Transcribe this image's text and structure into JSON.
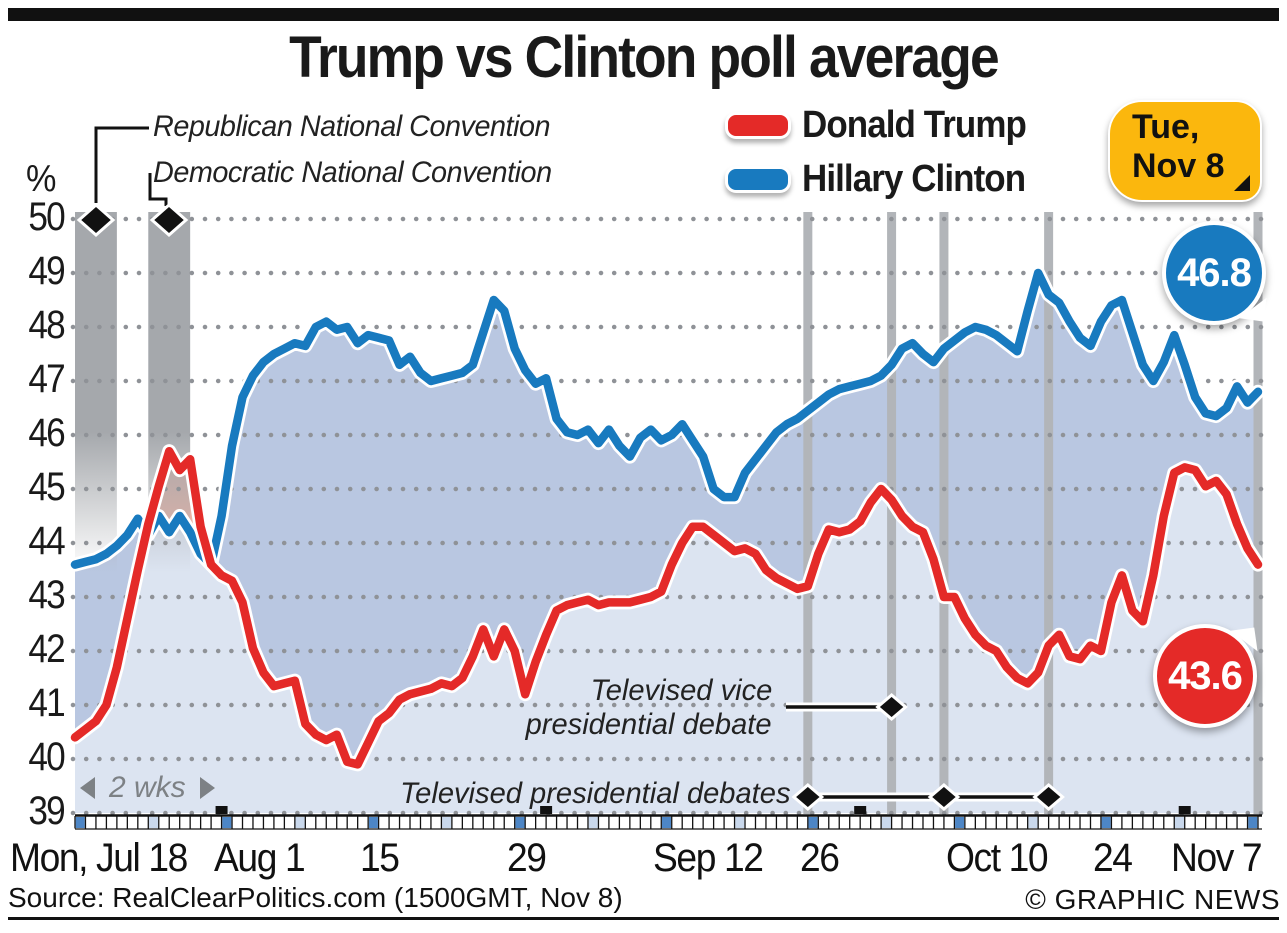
{
  "title": "Trump vs Clinton poll average",
  "annotations": {
    "rnc": "Republican National Convention",
    "dnc": "Democratic National Convention",
    "vp_line1": "Televised vice",
    "vp_line2": "presidential debate",
    "presidential": "Televised presidential debates",
    "range_label": "2 wks"
  },
  "legend": [
    {
      "label": "Donald Trump",
      "color": "#e42a28"
    },
    {
      "label": "Hillary Clinton",
      "color": "#187abf"
    }
  ],
  "election_badge": {
    "line1": "Tue,",
    "line2": "Nov 8",
    "color": "#fbb70d"
  },
  "badges": {
    "clinton_final": "46.8",
    "trump_final": "43.6"
  },
  "axis": {
    "unit": "%",
    "y_ticks": [
      50,
      49,
      48,
      47,
      46,
      45,
      44,
      43,
      42,
      41,
      40,
      39
    ],
    "x_ticks": [
      {
        "label": "Mon, Jul 18",
        "day": 0,
        "align": "start"
      },
      {
        "label": "Aug 1",
        "day": 14,
        "align": "tick"
      },
      {
        "label": "15",
        "day": 28,
        "align": "tick"
      },
      {
        "label": "29",
        "day": 42,
        "align": "tick"
      },
      {
        "label": "Sep 12",
        "day": 56,
        "align": "tick"
      },
      {
        "label": "26",
        "day": 70,
        "align": "tick"
      },
      {
        "label": "Oct 10",
        "day": 84,
        "align": "tick"
      },
      {
        "label": "24",
        "day": 98,
        "align": "tick"
      },
      {
        "label": "Nov 7",
        "day": 112,
        "align": "end"
      }
    ]
  },
  "footer": {
    "source": "Source: RealClearPolitics.com (1500GMT, Nov 8)",
    "copyright": "© GRAPHIC NEWS"
  },
  "chart_data": {
    "type": "line",
    "title": "Trump vs Clinton poll average",
    "ylabel": "%",
    "ylim": [
      39,
      50
    ],
    "x_unit": "days since Jul 18 2016",
    "x_start_date": "Jul 18",
    "x_end_date": "Nov 8",
    "total_days": 113,
    "grid": "dotted horizontal at each integer percent",
    "legend_position": "top",
    "events": {
      "conventions": [
        {
          "name": "Republican National Convention",
          "start_day": 0,
          "end_day": 4
        },
        {
          "name": "Democratic National Convention",
          "start_day": 7,
          "end_day": 11
        }
      ],
      "vp_debate_day": 78,
      "presidential_debate_days": [
        70,
        83,
        93
      ],
      "election_day": 113,
      "month_start_days": [
        14,
        45,
        75,
        106
      ]
    },
    "series": [
      {
        "name": "Hillary Clinton",
        "color": "#187abf",
        "final_label": "46.8",
        "values": [
          43.6,
          43.65,
          43.7,
          43.8,
          43.95,
          44.15,
          44.45,
          44.15,
          44.5,
          44.2,
          44.5,
          44.2,
          43.8,
          43.6,
          44.5,
          45.8,
          46.7,
          47.1,
          47.35,
          47.5,
          47.6,
          47.7,
          47.65,
          48.0,
          48.1,
          47.95,
          48.0,
          47.7,
          47.85,
          47.8,
          47.75,
          47.3,
          47.45,
          47.15,
          47.0,
          47.05,
          47.1,
          47.15,
          47.3,
          47.9,
          48.5,
          48.3,
          47.6,
          47.2,
          46.95,
          47.05,
          46.3,
          46.05,
          46.0,
          46.1,
          45.85,
          46.1,
          45.8,
          45.6,
          45.95,
          46.1,
          45.9,
          46.0,
          46.2,
          45.9,
          45.6,
          45.0,
          44.85,
          44.85,
          45.3,
          45.55,
          45.8,
          46.05,
          46.2,
          46.3,
          46.45,
          46.6,
          46.75,
          46.85,
          46.9,
          46.95,
          47.0,
          47.1,
          47.3,
          47.6,
          47.7,
          47.5,
          47.35,
          47.6,
          47.75,
          47.9,
          48.0,
          47.95,
          47.85,
          47.7,
          47.55,
          48.3,
          49.0,
          48.6,
          48.45,
          48.1,
          47.8,
          47.65,
          48.1,
          48.4,
          48.5,
          47.9,
          47.3,
          47.0,
          47.35,
          47.85,
          47.3,
          46.7,
          46.4,
          46.35,
          46.5,
          46.9,
          46.6,
          46.8
        ]
      },
      {
        "name": "Donald Trump",
        "color": "#e42a28",
        "final_label": "43.6",
        "values": [
          40.4,
          40.55,
          40.7,
          41.0,
          41.7,
          42.6,
          43.5,
          44.35,
          45.05,
          45.7,
          45.35,
          45.55,
          44.3,
          43.6,
          43.4,
          43.3,
          42.9,
          42.05,
          41.6,
          41.35,
          41.4,
          41.45,
          40.65,
          40.45,
          40.35,
          40.45,
          39.95,
          39.9,
          40.3,
          40.7,
          40.85,
          41.1,
          41.2,
          41.25,
          41.3,
          41.4,
          41.35,
          41.5,
          41.9,
          42.4,
          41.9,
          42.4,
          42.0,
          41.2,
          41.8,
          42.3,
          42.75,
          42.85,
          42.9,
          42.95,
          42.85,
          42.9,
          42.9,
          42.9,
          42.95,
          43.0,
          43.1,
          43.6,
          44.0,
          44.3,
          44.3,
          44.15,
          44.0,
          43.85,
          43.9,
          43.8,
          43.5,
          43.35,
          43.25,
          43.15,
          43.2,
          43.8,
          44.25,
          44.2,
          44.25,
          44.4,
          44.75,
          45.0,
          44.8,
          44.5,
          44.3,
          44.2,
          43.7,
          43.0,
          43.0,
          42.6,
          42.3,
          42.1,
          42.0,
          41.7,
          41.5,
          41.4,
          41.6,
          42.1,
          42.3,
          41.9,
          41.85,
          42.1,
          42.0,
          42.9,
          43.4,
          42.75,
          42.55,
          43.4,
          44.5,
          45.3,
          45.4,
          45.35,
          45.05,
          45.15,
          44.9,
          44.35,
          43.9,
          43.6
        ]
      }
    ],
    "style": {
      "fill_between_clinton_lead": "#b9c7e1",
      "fill_between_trump_lead": "#ecb4a6",
      "fill_below_lower": "#dce4f1",
      "grid_dot_color": "#8f9297",
      "event_band_color": "#b2b5b9",
      "convention_band_color": "#a5a8ac",
      "ruler_monday_dark": "#4d86c6",
      "ruler_monday_light": "#c9d8ec"
    }
  }
}
